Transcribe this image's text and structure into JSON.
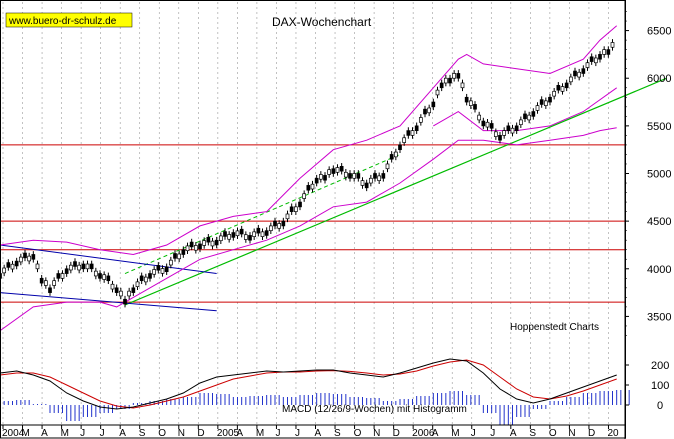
{
  "chart_data": [
    {
      "type": "line",
      "title": "DAX-Wochenchart",
      "source_label": "www.buero-dr-schulz.de",
      "credit": "Hoppenstedt Charts",
      "x_tick_labels": [
        "2004",
        "M",
        "A",
        "M",
        "J",
        "J",
        "A",
        "S",
        "O",
        "N",
        "D",
        "2005",
        "A",
        "M",
        "J",
        "J",
        "A",
        "S",
        "O",
        "N",
        "D",
        "2006",
        "A",
        "M",
        "J",
        "J",
        "A",
        "S",
        "O",
        "N",
        "D",
        "20"
      ],
      "y_axis_labels": [
        "6500",
        "6000",
        "5500",
        "5000",
        "4500",
        "4000",
        "3500"
      ],
      "ylim": [
        3200,
        6800
      ],
      "xlim": [
        0,
        150
      ],
      "grid": true,
      "colors": {
        "price": "#000000",
        "bollinger": "#cc00cc",
        "support_lines": "#cc0000",
        "trendline": "#00bb00",
        "channel": "#0000aa",
        "grid": "#999999"
      },
      "horizontal_levels": [
        5300,
        4500,
        4200,
        3650
      ],
      "price_series": {
        "name": "DAX",
        "x": [
          0,
          4,
          8,
          10,
          12,
          16,
          20,
          24,
          28,
          30,
          32,
          36,
          40,
          44,
          48,
          52,
          56,
          60,
          64,
          68,
          72,
          76,
          78,
          80,
          84,
          88,
          92,
          96,
          100,
          104,
          106,
          108,
          110,
          112,
          116,
          120,
          124,
          128,
          132,
          136,
          140,
          144,
          146,
          148
        ],
        "y": [
          3950,
          4080,
          4150,
          3900,
          3800,
          4000,
          4050,
          3950,
          3800,
          3680,
          3800,
          3950,
          4020,
          4200,
          4260,
          4300,
          4380,
          4350,
          4400,
          4500,
          4700,
          4950,
          4980,
          5050,
          5000,
          4900,
          5000,
          5300,
          5500,
          5750,
          5950,
          6000,
          6050,
          5800,
          5550,
          5400,
          5500,
          5650,
          5800,
          5950,
          6100,
          6250,
          6300,
          6400
        ]
      },
      "bollinger_upper": {
        "x": [
          0,
          8,
          16,
          24,
          32,
          40,
          48,
          56,
          64,
          72,
          80,
          88,
          96,
          104,
          110,
          112,
          116,
          124,
          132,
          140,
          144,
          148
        ],
        "y": [
          4250,
          4300,
          4280,
          4200,
          4150,
          4250,
          4450,
          4550,
          4600,
          4950,
          5250,
          5350,
          5500,
          5900,
          6200,
          6250,
          6150,
          6100,
          6050,
          6200,
          6400,
          6550
        ]
      },
      "bollinger_lower": {
        "x": [
          0,
          8,
          16,
          24,
          28,
          32,
          40,
          48,
          56,
          64,
          72,
          80,
          88,
          96,
          104,
          110,
          116,
          124,
          132,
          140,
          144,
          148
        ],
        "y": [
          3350,
          3600,
          3650,
          3650,
          3600,
          3700,
          3900,
          4100,
          4200,
          4300,
          4450,
          4650,
          4700,
          4900,
          5150,
          5350,
          5350,
          5300,
          5350,
          5400,
          5450,
          5480
        ]
      },
      "bollinger_middle": {
        "x": [
          104,
          110,
          116,
          124,
          132,
          140,
          148
        ],
        "y": [
          5500,
          5650,
          5450,
          5450,
          5500,
          5650,
          5900
        ]
      },
      "green_trendline": {
        "x": [
          30,
          160
        ],
        "y": [
          3620,
          6000
        ]
      },
      "green_dashed_line": {
        "x": [
          30,
          96
        ],
        "y": [
          3950,
          5200
        ]
      },
      "blue_channel_upper": {
        "x": [
          0,
          52
        ],
        "y": [
          4250,
          3950
        ]
      },
      "blue_channel_lower": {
        "x": [
          0,
          52
        ],
        "y": [
          3750,
          3560
        ]
      }
    },
    {
      "type": "bar",
      "title": "MACD (12/26/9-Wochen) mit Histogramm",
      "y_axis_labels": [
        "200",
        "100",
        "0"
      ],
      "ylim": [
        -100,
        300
      ],
      "macd_line": {
        "name": "MACD",
        "x": [
          0,
          4,
          8,
          12,
          16,
          20,
          24,
          28,
          32,
          36,
          40,
          44,
          48,
          52,
          56,
          60,
          64,
          68,
          72,
          76,
          80,
          84,
          88,
          92,
          96,
          100,
          104,
          108,
          112,
          116,
          120,
          124,
          128,
          132,
          136,
          140,
          144,
          148
        ],
        "y": [
          160,
          170,
          150,
          120,
          60,
          20,
          -10,
          -20,
          -10,
          10,
          30,
          60,
          110,
          140,
          150,
          160,
          170,
          165,
          170,
          175,
          175,
          160,
          150,
          140,
          160,
          185,
          210,
          230,
          220,
          160,
          80,
          30,
          10,
          30,
          60,
          90,
          120,
          150
        ]
      },
      "signal_line": {
        "name": "Signal",
        "x": [
          0,
          4,
          8,
          12,
          16,
          20,
          24,
          28,
          32,
          36,
          40,
          44,
          48,
          52,
          56,
          60,
          64,
          68,
          72,
          76,
          80,
          84,
          88,
          92,
          96,
          100,
          104,
          108,
          112,
          116,
          120,
          124,
          128,
          132,
          136,
          140,
          144,
          148
        ],
        "y": [
          150,
          160,
          160,
          140,
          100,
          60,
          20,
          -5,
          -15,
          0,
          20,
          40,
          70,
          100,
          130,
          145,
          160,
          165,
          165,
          170,
          172,
          168,
          160,
          150,
          155,
          170,
          195,
          215,
          225,
          200,
          140,
          80,
          40,
          30,
          45,
          70,
          100,
          130
        ]
      },
      "histogram": {
        "name": "Histogramm",
        "x": [
          0,
          4,
          8,
          12,
          16,
          20,
          24,
          28,
          32,
          36,
          40,
          44,
          48,
          52,
          56,
          60,
          64,
          68,
          72,
          76,
          80,
          84,
          88,
          92,
          96,
          100,
          104,
          108,
          112,
          116,
          120,
          124,
          128,
          132,
          136,
          140,
          144,
          148
        ],
        "y": [
          20,
          25,
          5,
          -40,
          -80,
          -60,
          -40,
          -20,
          10,
          20,
          30,
          40,
          60,
          55,
          40,
          45,
          50,
          40,
          50,
          60,
          55,
          40,
          35,
          20,
          30,
          45,
          60,
          70,
          50,
          -40,
          -100,
          -60,
          -20,
          20,
          40,
          60,
          70,
          75
        ]
      }
    }
  ]
}
